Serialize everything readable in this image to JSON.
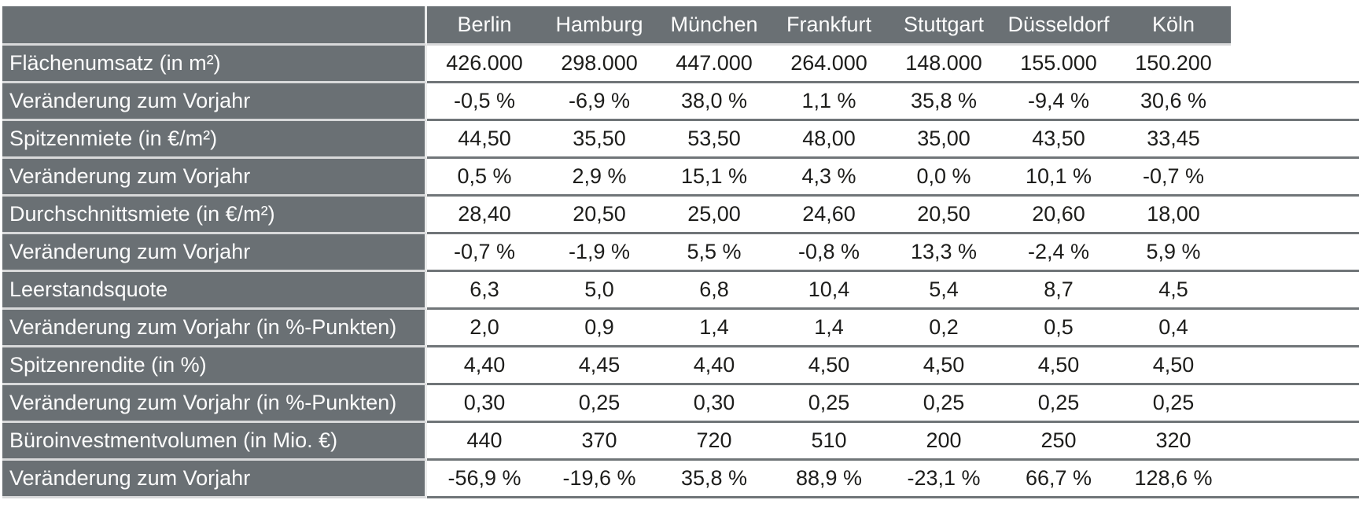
{
  "colors": {
    "table_gray": "#6a7074",
    "light_separator": "#d8d9da",
    "dark_separator": "#707578",
    "cell_background": "#ffffff",
    "value_text": "#1d1d1b",
    "label_text": "#fcfcfc"
  },
  "chart_data": {
    "type": "table",
    "columns": [
      "Berlin",
      "Hamburg",
      "München",
      "Frankfurt",
      "Stuttgart",
      "Düsseldorf",
      "Köln"
    ],
    "rows": [
      {
        "label": "Flächenumsatz (in m²)",
        "values": [
          "426.000",
          "298.000",
          "447.000",
          "264.000",
          "148.000",
          "155.000",
          "150.200"
        ]
      },
      {
        "label": "Veränderung zum Vorjahr",
        "values": [
          "-0,5 %",
          "-6,9 %",
          "38,0 %",
          "1,1 %",
          "35,8 %",
          "-9,4 %",
          "30,6 %"
        ]
      },
      {
        "label": "Spitzenmiete (in €/m²)",
        "values": [
          "44,50",
          "35,50",
          "53,50",
          "48,00",
          "35,00",
          "43,50",
          "33,45"
        ]
      },
      {
        "label": "Veränderung zum Vorjahr",
        "values": [
          "0,5 %",
          "2,9 %",
          "15,1 %",
          "4,3 %",
          "0,0 %",
          "10,1 %",
          "-0,7 %"
        ]
      },
      {
        "label": "Durchschnittsmiete (in €/m²)",
        "values": [
          "28,40",
          "20,50",
          "25,00",
          "24,60",
          "20,50",
          "20,60",
          "18,00"
        ]
      },
      {
        "label": "Veränderung zum Vorjahr",
        "values": [
          "-0,7 %",
          "-1,9 %",
          "5,5 %",
          "-0,8 %",
          "13,3 %",
          "-2,4 %",
          "5,9 %"
        ]
      },
      {
        "label": "Leerstandsquote",
        "values": [
          "6,3",
          "5,0",
          "6,8",
          "10,4",
          "5,4",
          "8,7",
          "4,5"
        ]
      },
      {
        "label": "Veränderung zum Vorjahr (in %-Punkten)",
        "values": [
          "2,0",
          "0,9",
          "1,4",
          "1,4",
          "0,2",
          "0,5",
          "0,4"
        ]
      },
      {
        "label": "Spitzenrendite (in %)",
        "values": [
          "4,40",
          "4,45",
          "4,40",
          "4,50",
          "4,50",
          "4,50",
          "4,50"
        ]
      },
      {
        "label": "Veränderung zum Vorjahr (in %-Punkten)",
        "values": [
          "0,30",
          "0,25",
          "0,30",
          "0,25",
          "0,25",
          "0,25",
          "0,25"
        ]
      },
      {
        "label": "Büroinvestmentvolumen (in Mio. €)",
        "values": [
          "440",
          "370",
          "720",
          "510",
          "200",
          "250",
          "320"
        ]
      },
      {
        "label": "Veränderung zum Vorjahr",
        "values": [
          "-56,9 %",
          "-19,6 %",
          "35,8 %",
          "88,9 %",
          "-23,1 %",
          "66,7 %",
          "128,6 %"
        ]
      }
    ]
  }
}
